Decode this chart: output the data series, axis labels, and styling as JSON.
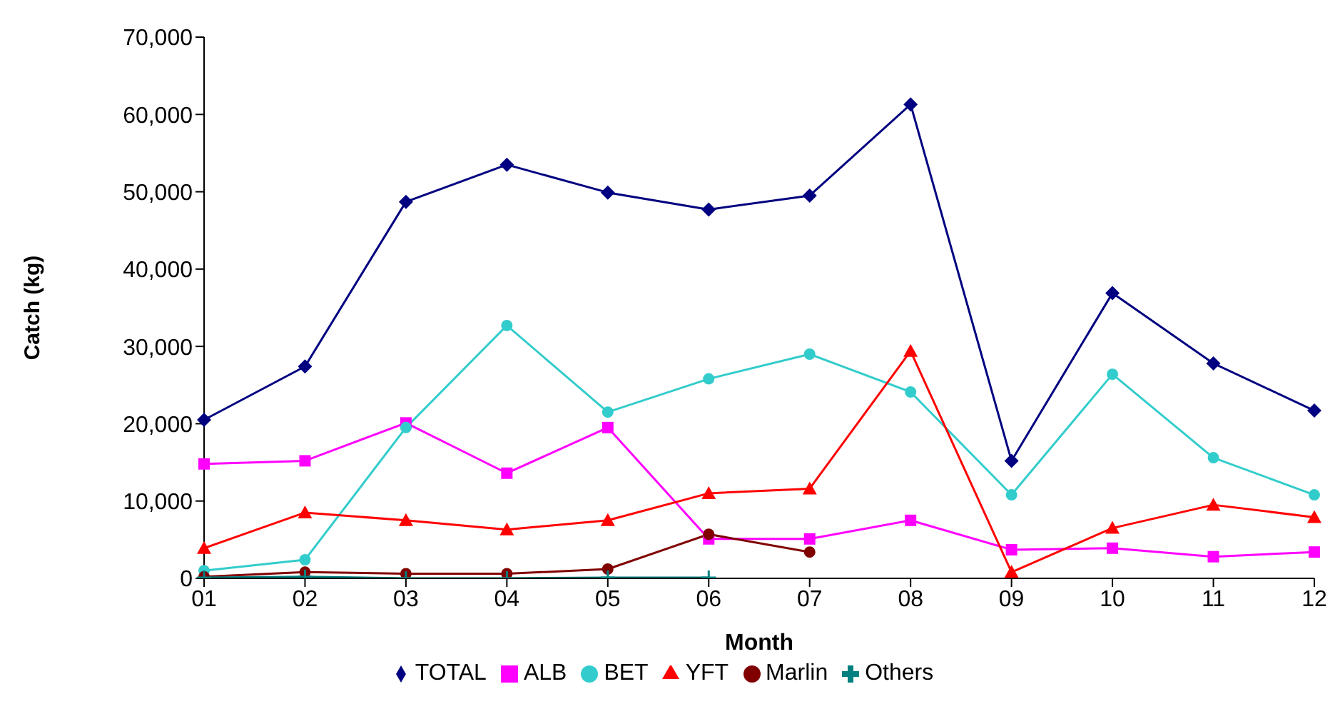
{
  "chart_data": {
    "type": "line",
    "xlabel": "Month",
    "ylabel": "Catch (kg)",
    "categories": [
      "01",
      "02",
      "03",
      "04",
      "05",
      "06",
      "07",
      "08",
      "09",
      "10",
      "11",
      "12"
    ],
    "ylim": [
      0,
      70000
    ],
    "yticks": [
      {
        "value": 0,
        "label": "0"
      },
      {
        "value": 10000,
        "label": "10,000"
      },
      {
        "value": 20000,
        "label": "20,000"
      },
      {
        "value": 30000,
        "label": "30,000"
      },
      {
        "value": 40000,
        "label": "40,000"
      },
      {
        "value": 50000,
        "label": "50,000"
      },
      {
        "value": 60000,
        "label": "60,000"
      },
      {
        "value": 70000,
        "label": "70,000"
      }
    ],
    "legend": "bottom",
    "series": [
      {
        "name": "TOTAL",
        "color": "#000080",
        "marker": "diamond",
        "values": [
          20500,
          27400,
          48700,
          53500,
          49900,
          47700,
          49500,
          61300,
          15200,
          36900,
          27800,
          21700
        ]
      },
      {
        "name": "ALB",
        "color": "#ff00ff",
        "marker": "square",
        "values": [
          14800,
          15200,
          20100,
          13600,
          19500,
          5100,
          5100,
          7500,
          3700,
          3900,
          2800,
          3400
        ]
      },
      {
        "name": "BET",
        "color": "#33cccc",
        "marker": "circle",
        "values": [
          1000,
          2400,
          19500,
          32700,
          21500,
          25800,
          29000,
          24100,
          10800,
          26400,
          15600,
          10800
        ]
      },
      {
        "name": "YFT",
        "color": "#ff0000",
        "marker": "triangle",
        "values": [
          3900,
          8500,
          7500,
          6300,
          7500,
          11000,
          11600,
          29400,
          800,
          6500,
          9500,
          7900
        ]
      },
      {
        "name": "Marlin",
        "color": "#800000",
        "marker": "circle",
        "values": [
          200,
          800,
          600,
          600,
          1200,
          5700,
          3400,
          null,
          null,
          null,
          null,
          null
        ]
      },
      {
        "name": "Others",
        "color": "#008080",
        "marker": "cross",
        "values": [
          100,
          200,
          0,
          0,
          100,
          100,
          null,
          null,
          null,
          null,
          null,
          null
        ]
      }
    ]
  }
}
